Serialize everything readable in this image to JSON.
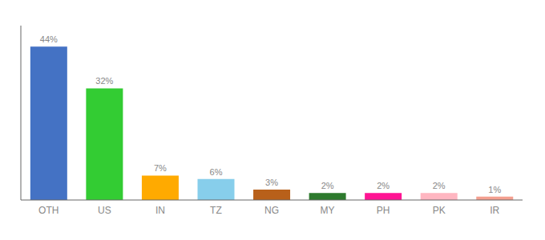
{
  "chart_data": {
    "type": "bar",
    "categories": [
      "OTH",
      "US",
      "IN",
      "TZ",
      "NG",
      "MY",
      "PH",
      "PK",
      "IR"
    ],
    "values": [
      44,
      32,
      7,
      6,
      3,
      2,
      2,
      2,
      1
    ],
    "value_labels": [
      "44%",
      "32%",
      "7%",
      "6%",
      "3%",
      "2%",
      "2%",
      "2%",
      "1%"
    ],
    "colors": [
      "#4472c4",
      "#33cc33",
      "#ffaa00",
      "#87ceeb",
      "#b8601a",
      "#2d7a2d",
      "#ff1493",
      "#ffb6c1",
      "#f4a090"
    ],
    "ylim": [
      0,
      50
    ],
    "data_labels": true,
    "tick_labels": "x",
    "grid": false
  }
}
